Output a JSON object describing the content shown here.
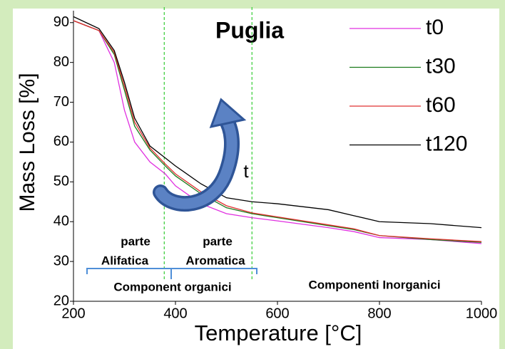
{
  "chart_data": {
    "type": "line",
    "title": "Puglia",
    "xlabel": "Temperature [°C]",
    "ylabel": "Mass Loss [%]",
    "x": [
      200,
      250,
      280,
      300,
      320,
      350,
      380,
      400,
      450,
      500,
      550,
      600,
      700,
      750,
      800,
      900,
      1000
    ],
    "series": [
      {
        "name": "t0",
        "color": "#e030e0",
        "values": [
          90.5,
          88,
          80,
          68,
          60,
          55,
          52,
          49,
          44.5,
          42,
          41,
          40.2,
          38.5,
          37.5,
          36,
          35.5,
          34.5
        ]
      },
      {
        "name": "t30",
        "color": "#1a7a1a",
        "values": [
          90.5,
          88,
          82,
          73,
          64,
          58,
          54,
          51.5,
          47,
          43.5,
          42,
          41,
          39,
          38,
          36.5,
          35.5,
          34.8
        ]
      },
      {
        "name": "t60",
        "color": "#e03030",
        "values": [
          90.5,
          88,
          82.5,
          74,
          65,
          58.5,
          54.5,
          52,
          47.5,
          44,
          42.2,
          41.2,
          39.2,
          38.2,
          36.5,
          35.7,
          35
        ]
      },
      {
        "name": "t120",
        "color": "#000000",
        "values": [
          91.5,
          88.5,
          83,
          75,
          66,
          59,
          56,
          54,
          49.5,
          46,
          45,
          44.5,
          43,
          41.5,
          40,
          39.5,
          38.5
        ]
      }
    ],
    "xlim": [
      200,
      1000
    ],
    "ylim": [
      20,
      93
    ],
    "xticks": [
      200,
      400,
      600,
      800,
      1000
    ],
    "yticks": [
      20,
      30,
      40,
      50,
      60,
      70,
      80,
      90
    ],
    "vlines": [
      378,
      550
    ],
    "vline_color": "#33cc33",
    "annotations": [
      "parte",
      "Alifatica",
      "parte",
      "Aromatica",
      "Component organici",
      "Componenti Inorganici",
      "t"
    ],
    "legend": "upper right"
  }
}
